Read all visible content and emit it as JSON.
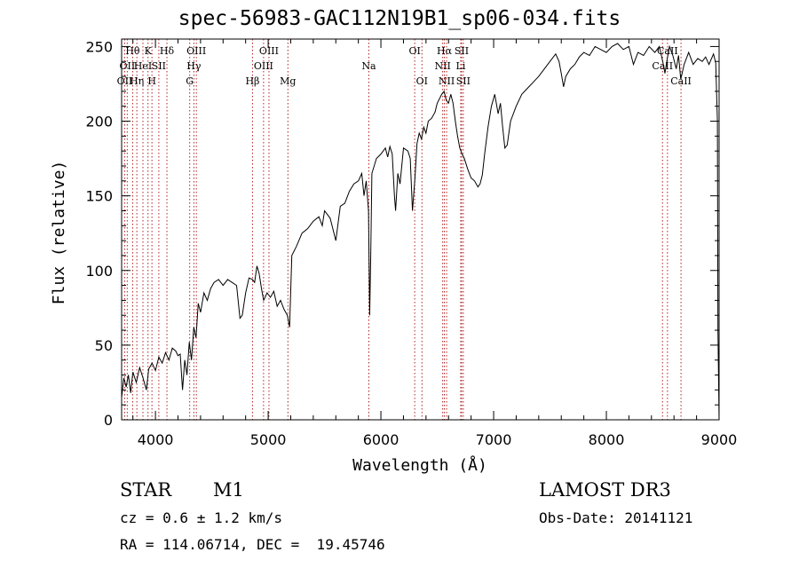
{
  "chart_data": {
    "type": "line",
    "title": "spec-56983-GAC112N19B1_sp06-034.fits",
    "xlabel": "Wavelength (Å)",
    "ylabel": "Flux (relative)",
    "xlim": [
      3700,
      9000
    ],
    "ylim": [
      0,
      255
    ],
    "xticks": [
      4000,
      5000,
      6000,
      7000,
      8000,
      9000
    ],
    "yticks": [
      0,
      50,
      100,
      150,
      200,
      250
    ],
    "x_minor_step": 200,
    "y_minor_step": 10,
    "series": [
      {
        "name": "flux",
        "points": [
          [
            3700,
            15
          ],
          [
            3720,
            28
          ],
          [
            3740,
            22
          ],
          [
            3760,
            30
          ],
          [
            3780,
            18
          ],
          [
            3800,
            32
          ],
          [
            3830,
            25
          ],
          [
            3860,
            35
          ],
          [
            3890,
            28
          ],
          [
            3920,
            20
          ],
          [
            3940,
            34
          ],
          [
            3970,
            38
          ],
          [
            4000,
            33
          ],
          [
            4030,
            42
          ],
          [
            4060,
            38
          ],
          [
            4090,
            45
          ],
          [
            4120,
            40
          ],
          [
            4150,
            48
          ],
          [
            4180,
            46
          ],
          [
            4200,
            43
          ],
          [
            4220,
            44
          ],
          [
            4240,
            20
          ],
          [
            4260,
            40
          ],
          [
            4280,
            30
          ],
          [
            4300,
            52
          ],
          [
            4320,
            40
          ],
          [
            4340,
            62
          ],
          [
            4360,
            55
          ],
          [
            4380,
            78
          ],
          [
            4400,
            72
          ],
          [
            4430,
            85
          ],
          [
            4460,
            80
          ],
          [
            4490,
            88
          ],
          [
            4520,
            92
          ],
          [
            4560,
            94
          ],
          [
            4600,
            90
          ],
          [
            4640,
            94
          ],
          [
            4680,
            92
          ],
          [
            4720,
            90
          ],
          [
            4750,
            68
          ],
          [
            4770,
            70
          ],
          [
            4800,
            85
          ],
          [
            4830,
            95
          ],
          [
            4860,
            94
          ],
          [
            4880,
            92
          ],
          [
            4900,
            103
          ],
          [
            4920,
            98
          ],
          [
            4940,
            88
          ],
          [
            4960,
            80
          ],
          [
            4990,
            85
          ],
          [
            5020,
            82
          ],
          [
            5050,
            86
          ],
          [
            5080,
            76
          ],
          [
            5110,
            80
          ],
          [
            5140,
            74
          ],
          [
            5170,
            70
          ],
          [
            5190,
            62
          ],
          [
            5210,
            110
          ],
          [
            5250,
            116
          ],
          [
            5300,
            125
          ],
          [
            5350,
            128
          ],
          [
            5400,
            133
          ],
          [
            5450,
            136
          ],
          [
            5480,
            130
          ],
          [
            5500,
            140
          ],
          [
            5550,
            135
          ],
          [
            5600,
            120
          ],
          [
            5640,
            143
          ],
          [
            5680,
            145
          ],
          [
            5720,
            153
          ],
          [
            5760,
            158
          ],
          [
            5800,
            160
          ],
          [
            5830,
            165
          ],
          [
            5850,
            150
          ],
          [
            5870,
            160
          ],
          [
            5890,
            140
          ],
          [
            5900,
            70
          ],
          [
            5910,
            110
          ],
          [
            5920,
            165
          ],
          [
            5960,
            175
          ],
          [
            6000,
            178
          ],
          [
            6040,
            182
          ],
          [
            6060,
            176
          ],
          [
            6080,
            183
          ],
          [
            6100,
            178
          ],
          [
            6120,
            150
          ],
          [
            6130,
            140
          ],
          [
            6150,
            165
          ],
          [
            6170,
            158
          ],
          [
            6200,
            182
          ],
          [
            6240,
            180
          ],
          [
            6260,
            175
          ],
          [
            6280,
            140
          ],
          [
            6300,
            160
          ],
          [
            6320,
            185
          ],
          [
            6340,
            192
          ],
          [
            6360,
            188
          ],
          [
            6380,
            196
          ],
          [
            6400,
            192
          ],
          [
            6420,
            200
          ],
          [
            6450,
            202
          ],
          [
            6480,
            206
          ],
          [
            6500,
            212
          ],
          [
            6540,
            218
          ],
          [
            6560,
            220
          ],
          [
            6580,
            214
          ],
          [
            6600,
            212
          ],
          [
            6620,
            218
          ],
          [
            6640,
            212
          ],
          [
            6660,
            200
          ],
          [
            6680,
            190
          ],
          [
            6700,
            182
          ],
          [
            6720,
            178
          ],
          [
            6740,
            175
          ],
          [
            6770,
            168
          ],
          [
            6800,
            162
          ],
          [
            6830,
            160
          ],
          [
            6860,
            156
          ],
          [
            6880,
            158
          ],
          [
            6900,
            164
          ],
          [
            6920,
            178
          ],
          [
            6950,
            196
          ],
          [
            6980,
            210
          ],
          [
            7010,
            218
          ],
          [
            7040,
            205
          ],
          [
            7060,
            212
          ],
          [
            7080,
            196
          ],
          [
            7100,
            182
          ],
          [
            7120,
            184
          ],
          [
            7150,
            200
          ],
          [
            7200,
            210
          ],
          [
            7250,
            218
          ],
          [
            7300,
            222
          ],
          [
            7350,
            226
          ],
          [
            7400,
            230
          ],
          [
            7450,
            235
          ],
          [
            7500,
            240
          ],
          [
            7550,
            245
          ],
          [
            7580,
            240
          ],
          [
            7600,
            232
          ],
          [
            7620,
            223
          ],
          [
            7640,
            230
          ],
          [
            7680,
            235
          ],
          [
            7720,
            238
          ],
          [
            7760,
            243
          ],
          [
            7800,
            246
          ],
          [
            7850,
            244
          ],
          [
            7900,
            250
          ],
          [
            7950,
            248
          ],
          [
            8000,
            246
          ],
          [
            8050,
            250
          ],
          [
            8100,
            252
          ],
          [
            8150,
            248
          ],
          [
            8200,
            250
          ],
          [
            8240,
            238
          ],
          [
            8280,
            246
          ],
          [
            8330,
            244
          ],
          [
            8380,
            250
          ],
          [
            8430,
            246
          ],
          [
            8470,
            250
          ],
          [
            8500,
            240
          ],
          [
            8520,
            232
          ],
          [
            8540,
            242
          ],
          [
            8560,
            250
          ],
          [
            8590,
            244
          ],
          [
            8620,
            235
          ],
          [
            8640,
            244
          ],
          [
            8660,
            228
          ],
          [
            8690,
            238
          ],
          [
            8730,
            246
          ],
          [
            8770,
            238
          ],
          [
            8810,
            242
          ],
          [
            8850,
            240
          ],
          [
            8880,
            243
          ],
          [
            8910,
            238
          ],
          [
            8950,
            245
          ],
          [
            8970,
            239
          ],
          [
            8985,
            200
          ],
          [
            8990,
            60
          ],
          [
            9000,
            0
          ]
        ]
      }
    ],
    "lines": [
      {
        "x": 3727,
        "labels": [
          {
            "text": "OII",
            "row": 2
          }
        ]
      },
      {
        "x": 3750,
        "labels": [
          {
            "text": "OII",
            "row": 1
          }
        ]
      },
      {
        "x": 3798,
        "labels": [
          {
            "text": "Hθ",
            "row": 0
          }
        ]
      },
      {
        "x": 3835,
        "labels": [
          {
            "text": "Hη",
            "row": 2
          }
        ]
      },
      {
        "x": 3889,
        "labels": [
          {
            "text": "HeI",
            "row": 1
          }
        ]
      },
      {
        "x": 3934,
        "labels": [
          {
            "text": "K",
            "row": 0
          }
        ]
      },
      {
        "x": 3969,
        "labels": [
          {
            "text": "H",
            "row": 2
          }
        ]
      },
      {
        "x": 4030,
        "labels": [
          {
            "text": "SII",
            "row": 1
          }
        ]
      },
      {
        "x": 4102,
        "labels": [
          {
            "text": "Hδ",
            "row": 0
          }
        ]
      },
      {
        "x": 4304,
        "labels": [
          {
            "text": "G",
            "row": 2
          }
        ]
      },
      {
        "x": 4341,
        "labels": [
          {
            "text": "Hγ",
            "row": 1
          }
        ]
      },
      {
        "x": 4363,
        "labels": [
          {
            "text": "OIII",
            "row": 0
          }
        ]
      },
      {
        "x": 4861,
        "labels": [
          {
            "text": "Hβ",
            "row": 2
          }
        ]
      },
      {
        "x": 4959,
        "labels": [
          {
            "text": "OIII",
            "row": 1
          }
        ]
      },
      {
        "x": 5007,
        "labels": [
          {
            "text": "OIII",
            "row": 0
          }
        ]
      },
      {
        "x": 5175,
        "labels": [
          {
            "text": "Mg",
            "row": 2
          }
        ]
      },
      {
        "x": 5893,
        "labels": [
          {
            "text": "Na",
            "row": 1
          }
        ]
      },
      {
        "x": 6300,
        "labels": [
          {
            "text": "OI",
            "row": 0
          }
        ]
      },
      {
        "x": 6364,
        "labels": [
          {
            "text": "OI",
            "row": 2
          }
        ]
      },
      {
        "x": 6548,
        "labels": [
          {
            "text": "NII",
            "row": 1
          }
        ]
      },
      {
        "x": 6563,
        "labels": [
          {
            "text": "Hα",
            "row": 0
          }
        ]
      },
      {
        "x": 6583,
        "labels": [
          {
            "text": "NII",
            "row": 2
          }
        ]
      },
      {
        "x": 6708,
        "labels": [
          {
            "text": "Li",
            "row": 1
          }
        ]
      },
      {
        "x": 6716,
        "labels": [
          {
            "text": "SII",
            "row": 0
          }
        ]
      },
      {
        "x": 6731,
        "labels": [
          {
            "text": "SII",
            "row": 2
          }
        ]
      },
      {
        "x": 8498,
        "labels": [
          {
            "text": "CaII",
            "row": 1
          }
        ]
      },
      {
        "x": 8542,
        "labels": [
          {
            "text": "CaII",
            "row": 0
          }
        ]
      },
      {
        "x": 8662,
        "labels": [
          {
            "text": "CaII",
            "row": 2
          }
        ]
      }
    ]
  },
  "info": {
    "object_class": "STAR",
    "subclass": "M1",
    "survey": "LAMOST DR3",
    "redshift": "cz = 0.6 ± 1.2 km/s",
    "obs_date": "Obs-Date: 20141121",
    "coords": "RA = 114.06714, DEC =  19.45746"
  },
  "colors": {
    "line_marker": "#b22222",
    "spectrum": "#000000"
  }
}
